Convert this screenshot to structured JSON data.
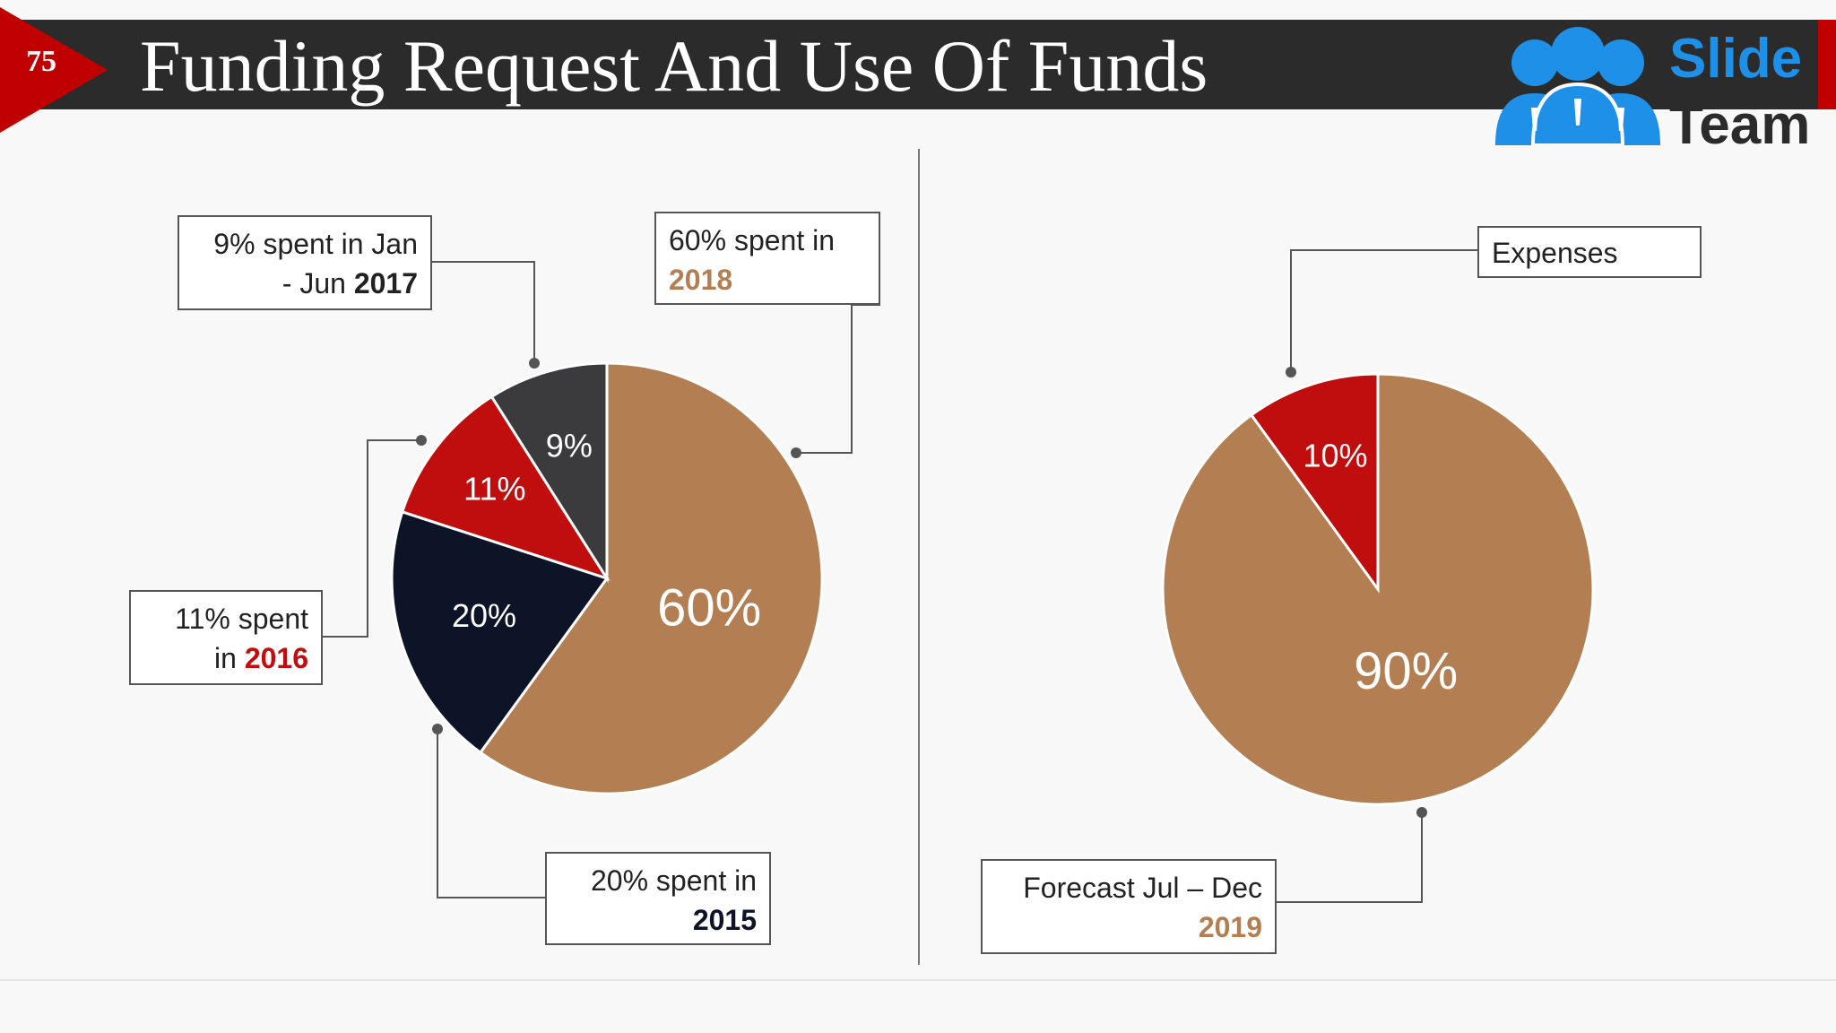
{
  "header": {
    "slide_number": "75",
    "title": "Funding Request And Use Of Funds"
  },
  "logo": {
    "word1": "Slide",
    "word2": "Team"
  },
  "colors": {
    "brown": "#b37f52",
    "red": "#c00d0d",
    "dark_gray": "#3b3a3c",
    "navy": "#0e1428",
    "header": "#2b2b2b",
    "accent_red": "#c00000"
  },
  "chart_data": [
    {
      "type": "pie",
      "title": "",
      "categories": [
        "2018",
        "2015",
        "2016",
        "Jan - Jun 2017"
      ],
      "values": [
        60,
        20,
        11,
        9
      ],
      "data_labels": [
        "60%",
        "20%",
        "11%",
        "9%"
      ],
      "callouts": [
        {
          "text": "60% spent in",
          "year": "2018",
          "year_color": "#b37f52"
        },
        {
          "text": "20% spent in",
          "year": "2015",
          "year_color": "#0e1428"
        },
        {
          "text": "11% spent",
          "line2": "in",
          "year": "2016",
          "year_color": "#c00d0d"
        },
        {
          "text": "9% spent in Jan",
          "line2": "- Jun",
          "year": "2017",
          "year_color": "#222222"
        }
      ]
    },
    {
      "type": "pie",
      "title": "",
      "categories": [
        "Forecast Jul – Dec 2019",
        "Expenses"
      ],
      "values": [
        90,
        10
      ],
      "data_labels": [
        "90%",
        "10%"
      ],
      "callouts": [
        {
          "text": "Expenses"
        },
        {
          "text": "Forecast Jul – Dec",
          "year": "2019",
          "year_color": "#b37f52"
        }
      ]
    }
  ]
}
